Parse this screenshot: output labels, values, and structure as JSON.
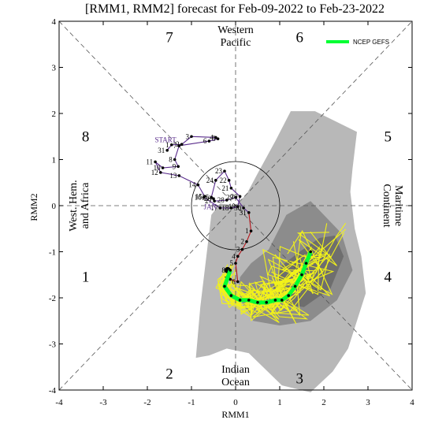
{
  "chart_data": {
    "type": "line",
    "title": "[RMM1, RMM2] forecast for Feb-09-2022 to Feb-23-2022",
    "xlabel": "RMM1",
    "ylabel": "RMM2",
    "xlim": [
      -4,
      4
    ],
    "ylim": [
      -4,
      4
    ],
    "xticks": [
      "-4",
      "-3",
      "-2",
      "-1",
      "0",
      "1",
      "2",
      "3",
      "4"
    ],
    "yticks": [
      "-4",
      "-3",
      "-2",
      "-1",
      "0",
      "1",
      "2",
      "3",
      "4"
    ],
    "phase_labels": [
      {
        "text": "1",
        "x": -3.4,
        "y": -1.55
      },
      {
        "text": "2",
        "x": -1.5,
        "y": -3.65
      },
      {
        "text": "3",
        "x": 1.45,
        "y": -3.75
      },
      {
        "text": "4",
        "x": 3.45,
        "y": -1.55
      },
      {
        "text": "5",
        "x": 3.45,
        "y": 1.5
      },
      {
        "text": "6",
        "x": 1.45,
        "y": 3.65
      },
      {
        "text": "7",
        "x": -1.5,
        "y": 3.65
      },
      {
        "text": "8",
        "x": -3.4,
        "y": 1.5
      }
    ],
    "regions": {
      "top": [
        "Western",
        "Pacific"
      ],
      "bottom": [
        "Indian",
        "Ocean"
      ],
      "left": [
        "West. Hem.",
        "and Africa"
      ],
      "right": [
        "Maritime",
        "Continent"
      ]
    },
    "legend": {
      "label": "NCEP GEFS",
      "color": "#00ff33"
    },
    "start_label": {
      "text": "START",
      "x": -1.83,
      "y": 1.38
    },
    "jan_label": {
      "text": "JAN",
      "x": -0.72,
      "y": -0.08
    },
    "unit_circle_radius": 1,
    "spread_outer": [
      [
        -0.55,
        -0.2
      ],
      [
        -0.6,
        -0.6
      ],
      [
        -0.8,
        -2.2
      ],
      [
        -0.9,
        -3.3
      ],
      [
        -0.6,
        -3.25
      ],
      [
        -0.2,
        -3.1
      ],
      [
        0.3,
        -3.2
      ],
      [
        1.05,
        -3.9
      ],
      [
        1.7,
        -4.05
      ],
      [
        2.2,
        -3.6
      ],
      [
        2.55,
        -3.1
      ],
      [
        2.75,
        -2.5
      ],
      [
        2.95,
        -1.9
      ],
      [
        2.85,
        -1.1
      ],
      [
        2.7,
        -0.5
      ],
      [
        2.6,
        0.3
      ],
      [
        2.65,
        0.8
      ],
      [
        2.75,
        1.6
      ],
      [
        1.8,
        2.05
      ],
      [
        1.25,
        2.05
      ],
      [
        0.9,
        1.4
      ],
      [
        0.5,
        0.7
      ],
      [
        0.25,
        0.25
      ],
      [
        0.0,
        0.0
      ],
      [
        -0.35,
        0.05
      ]
    ],
    "spread_inner": [
      [
        0.1,
        -1.55
      ],
      [
        0.05,
        -1.95
      ],
      [
        0.4,
        -2.5
      ],
      [
        1.0,
        -2.6
      ],
      [
        1.7,
        -2.5
      ],
      [
        2.3,
        -2.05
      ],
      [
        2.65,
        -1.4
      ],
      [
        2.4,
        -0.6
      ],
      [
        1.7,
        0.1
      ],
      [
        1.15,
        -0.2
      ],
      [
        0.75,
        -0.95
      ],
      [
        0.35,
        -1.25
      ]
    ],
    "spread_core": [
      [
        0.85,
        -1.75
      ],
      [
        1.1,
        -2.15
      ],
      [
        1.55,
        -2.2
      ],
      [
        2.15,
        -1.8
      ],
      [
        2.45,
        -1.1
      ],
      [
        2.25,
        -0.65
      ],
      [
        1.9,
        -0.7
      ],
      [
        1.45,
        -1.0
      ],
      [
        1.05,
        -1.3
      ]
    ],
    "observed": [
      {
        "day": "START",
        "x": -1.52,
        "y": 1.25
      },
      {
        "day": "31",
        "x": -1.55,
        "y": 1.2
      },
      {
        "day": "1",
        "x": -1.45,
        "y": 1.32
      },
      {
        "day": "2",
        "x": -1.22,
        "y": 1.33
      },
      {
        "day": "3",
        "x": -1.0,
        "y": 1.5
      },
      {
        "day": "4",
        "x": -0.45,
        "y": 1.48
      },
      {
        "day": "5",
        "x": -0.4,
        "y": 1.45
      },
      {
        "day": "6",
        "x": -0.6,
        "y": 1.4
      },
      {
        "day": "7",
        "x": -1.28,
        "y": 1.3
      },
      {
        "day": "8",
        "x": -1.38,
        "y": 1.0
      },
      {
        "day": "9",
        "x": -1.3,
        "y": 0.85
      },
      {
        "day": "10",
        "x": -1.65,
        "y": 0.82
      },
      {
        "day": "11",
        "x": -1.82,
        "y": 0.95
      },
      {
        "day": "12",
        "x": -1.7,
        "y": 0.72
      },
      {
        "day": "13",
        "x": -1.28,
        "y": 0.65
      },
      {
        "day": "14",
        "x": -0.85,
        "y": 0.45
      },
      {
        "day": "15",
        "x": -0.7,
        "y": 0.2
      },
      {
        "day": "16",
        "x": -0.72,
        "y": 0.18
      },
      {
        "day": "17",
        "x": -0.35,
        "y": -0.05
      },
      {
        "day": "18",
        "x": -0.1,
        "y": -0.05
      },
      {
        "day": "19",
        "x": 0.05,
        "y": -0.02
      },
      {
        "day": "20",
        "x": 0.1,
        "y": 0.2
      },
      {
        "day": "21",
        "x": -0.1,
        "y": 0.38
      },
      {
        "day": "22",
        "x": -0.15,
        "y": 0.55
      },
      {
        "day": "23",
        "x": -0.25,
        "y": 0.75
      },
      {
        "day": "24",
        "x": -0.45,
        "y": 0.55
      },
      {
        "day": "25",
        "x": -0.55,
        "y": 0.18
      },
      {
        "day": "26",
        "x": -0.5,
        "y": 0.15
      },
      {
        "day": "27",
        "x": -0.48,
        "y": 0.1
      },
      {
        "day": "28",
        "x": -0.2,
        "y": 0.12
      },
      {
        "day": "29",
        "x": 0.0,
        "y": 0.18
      },
      {
        "day": "30",
        "x": 0.18,
        "y": -0.05
      },
      {
        "day": "31",
        "x": 0.3,
        "y": -0.15
      },
      {
        "day": "1",
        "x": 0.35,
        "y": -0.55
      },
      {
        "day": "2",
        "x": 0.25,
        "y": -0.78
      },
      {
        "day": "3",
        "x": 0.15,
        "y": -0.95
      },
      {
        "day": "4",
        "x": 0.05,
        "y": -1.1
      },
      {
        "day": "5",
        "x": 0.0,
        "y": -1.25
      },
      {
        "day": "6",
        "x": 0.05,
        "y": -1.65
      },
      {
        "day": "7",
        "x": -0.12,
        "y": -1.6
      },
      {
        "day": "8",
        "x": -0.18,
        "y": -1.4
      }
    ],
    "ensemble_mean": [
      [
        -0.12,
        -1.4
      ],
      [
        -0.25,
        -1.75
      ],
      [
        -0.1,
        -1.95
      ],
      [
        0.1,
        -2.05
      ],
      [
        0.3,
        -2.05
      ],
      [
        0.5,
        -2.1
      ],
      [
        0.7,
        -2.1
      ],
      [
        0.9,
        -2.05
      ],
      [
        1.05,
        -2.05
      ],
      [
        1.2,
        -1.95
      ],
      [
        1.35,
        -1.75
      ],
      [
        1.5,
        -1.5
      ],
      [
        1.6,
        -1.25
      ],
      [
        1.7,
        -1.0
      ]
    ]
  }
}
